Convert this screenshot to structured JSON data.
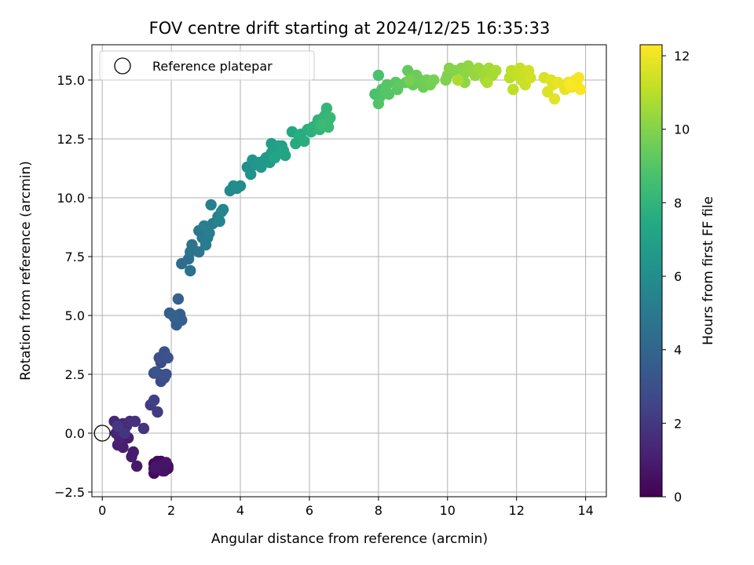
{
  "chart_data": {
    "type": "scatter",
    "title": "FOV centre drift starting at 2024/12/25 16:35:33",
    "xlabel": "Angular distance from reference (arcmin)",
    "ylabel": "Rotation from reference (arcmin)",
    "xlim": [
      -0.3,
      14.6
    ],
    "ylim": [
      -2.7,
      16.5
    ],
    "xticks": [
      0,
      2,
      4,
      6,
      8,
      10,
      12,
      14
    ],
    "yticks": [
      -2.5,
      0.0,
      2.5,
      5.0,
      7.5,
      10.0,
      12.5,
      15.0
    ],
    "xtick_labels": [
      "0",
      "2",
      "4",
      "6",
      "8",
      "10",
      "12",
      "14"
    ],
    "ytick_labels": [
      "−2.5",
      "0.0",
      "2.5",
      "5.0",
      "7.5",
      "10.0",
      "12.5",
      "15.0"
    ],
    "grid": true,
    "colormap": "viridis",
    "colorbar": {
      "label": "Hours from first FF file",
      "range": [
        0,
        12.3
      ],
      "ticks": [
        0,
        2,
        4,
        6,
        8,
        10,
        12
      ],
      "tick_labels": [
        "0",
        "2",
        "4",
        "6",
        "8",
        "10",
        "12"
      ]
    },
    "legend": {
      "position": "top-left",
      "entries": [
        {
          "label": "Reference platepar",
          "marker": "open-circle",
          "x": 0,
          "y": 0
        }
      ]
    },
    "points": [
      [
        1.5,
        -1.3,
        0.05
      ],
      [
        1.6,
        -1.5,
        0.1
      ],
      [
        1.7,
        -1.2,
        0.15
      ],
      [
        1.8,
        -1.6,
        0.2
      ],
      [
        1.9,
        -1.4,
        0.25
      ],
      [
        1.5,
        -1.7,
        0.3
      ],
      [
        1.6,
        -1.2,
        0.35
      ],
      [
        1.7,
        -1.5,
        0.4
      ],
      [
        1.8,
        -1.3,
        0.45
      ],
      [
        1.9,
        -1.5,
        0.5
      ],
      [
        1.5,
        -1.5,
        0.55
      ],
      [
        1.65,
        -1.35,
        0.6
      ],
      [
        1.75,
        -1.6,
        0.65
      ],
      [
        1.85,
        -1.25,
        0.7
      ],
      [
        1.55,
        -1.45,
        0.75
      ],
      [
        1.0,
        -1.4,
        0.85
      ],
      [
        0.9,
        -0.8,
        0.9
      ],
      [
        0.85,
        -1.0,
        0.95
      ],
      [
        0.75,
        -0.2,
        1.0
      ],
      [
        0.6,
        -0.6,
        1.05
      ],
      [
        0.45,
        -0.5,
        1.1
      ],
      [
        0.5,
        -0.2,
        1.15
      ],
      [
        0.4,
        0.0,
        1.2
      ],
      [
        0.55,
        0.2,
        1.25
      ],
      [
        0.6,
        0.4,
        1.3
      ],
      [
        0.35,
        0.5,
        1.35
      ],
      [
        0.5,
        0.1,
        1.4
      ],
      [
        0.7,
        0.3,
        1.5
      ],
      [
        0.8,
        0.5,
        1.6
      ],
      [
        0.95,
        0.5,
        1.7
      ],
      [
        1.2,
        0.2,
        1.8
      ],
      [
        0.65,
        0.0,
        1.9
      ],
      [
        0.45,
        0.3,
        2.0
      ],
      [
        1.4,
        1.2,
        2.1
      ],
      [
        1.6,
        0.9,
        2.2
      ],
      [
        1.5,
        1.4,
        2.3
      ],
      [
        1.5,
        2.55,
        2.5
      ],
      [
        1.65,
        2.5,
        2.6
      ],
      [
        1.7,
        2.2,
        2.7
      ],
      [
        1.7,
        3.0,
        2.8
      ],
      [
        1.8,
        2.35,
        2.9
      ],
      [
        1.65,
        3.2,
        3.0
      ],
      [
        1.8,
        3.45,
        3.05
      ],
      [
        1.85,
        2.5,
        3.1
      ],
      [
        1.9,
        3.2,
        3.2
      ],
      [
        1.55,
        2.6,
        3.3
      ],
      [
        1.95,
        5.1,
        3.5
      ],
      [
        2.1,
        4.9,
        3.6
      ],
      [
        2.15,
        4.6,
        3.65
      ],
      [
        2.25,
        5.05,
        3.7
      ],
      [
        2.3,
        4.8,
        3.75
      ],
      [
        2.2,
        5.7,
        3.85
      ],
      [
        2.05,
        5.0,
        3.9
      ],
      [
        2.3,
        7.2,
        4.4
      ],
      [
        2.5,
        7.4,
        4.5
      ],
      [
        2.55,
        6.9,
        4.6
      ],
      [
        2.55,
        7.7,
        4.65
      ],
      [
        2.6,
        8.0,
        4.7
      ],
      [
        2.8,
        7.7,
        4.8
      ],
      [
        2.8,
        8.6,
        4.9
      ],
      [
        2.9,
        8.3,
        5.0
      ],
      [
        3.0,
        8.0,
        5.05
      ],
      [
        3.05,
        8.3,
        5.1
      ],
      [
        3.1,
        8.5,
        5.15
      ],
      [
        3.2,
        8.9,
        5.2
      ],
      [
        2.95,
        8.8,
        5.25
      ],
      [
        3.15,
        9.7,
        5.3
      ],
      [
        3.35,
        9.2,
        5.4
      ],
      [
        3.4,
        9.0,
        5.5
      ],
      [
        3.45,
        9.4,
        5.55
      ],
      [
        3.5,
        9.5,
        5.6
      ],
      [
        3.7,
        10.3,
        5.8
      ],
      [
        3.8,
        10.5,
        5.85
      ],
      [
        3.9,
        10.4,
        5.9
      ],
      [
        4.0,
        10.5,
        5.95
      ],
      [
        4.2,
        11.3,
        6.1
      ],
      [
        4.3,
        11.0,
        6.2
      ],
      [
        4.35,
        11.6,
        6.3
      ],
      [
        4.45,
        11.4,
        6.4
      ],
      [
        4.55,
        11.5,
        6.5
      ],
      [
        4.6,
        11.3,
        6.55
      ],
      [
        4.7,
        11.6,
        6.6
      ],
      [
        4.75,
        11.7,
        6.65
      ],
      [
        4.85,
        11.5,
        6.7
      ],
      [
        4.9,
        11.9,
        6.75
      ],
      [
        4.95,
        12.0,
        6.8
      ],
      [
        4.9,
        12.3,
        6.85
      ],
      [
        5.0,
        12.0,
        6.9
      ],
      [
        5.1,
        12.2,
        6.95
      ],
      [
        5.15,
        11.9,
        7.0
      ],
      [
        5.2,
        12.2,
        7.05
      ],
      [
        5.25,
        12.0,
        7.1
      ],
      [
        5.3,
        11.8,
        7.15
      ],
      [
        5.0,
        11.7,
        7.2
      ],
      [
        5.5,
        12.8,
        7.4
      ],
      [
        5.6,
        12.3,
        7.5
      ],
      [
        5.7,
        12.6,
        7.55
      ],
      [
        5.75,
        12.7,
        7.6
      ],
      [
        5.85,
        12.4,
        7.65
      ],
      [
        5.95,
        12.9,
        7.7
      ],
      [
        6.05,
        12.8,
        7.75
      ],
      [
        6.1,
        13.0,
        7.8
      ],
      [
        6.2,
        13.1,
        7.85
      ],
      [
        6.25,
        13.3,
        7.9
      ],
      [
        6.3,
        12.9,
        7.95
      ],
      [
        6.4,
        13.4,
        8.0
      ],
      [
        6.45,
        13.5,
        8.05
      ],
      [
        6.5,
        13.8,
        8.1
      ],
      [
        6.55,
        13.3,
        8.15
      ],
      [
        6.6,
        13.4,
        8.2
      ],
      [
        6.55,
        13.0,
        8.25
      ],
      [
        6.35,
        13.1,
        8.3
      ],
      [
        7.9,
        14.4,
        8.7
      ],
      [
        8.0,
        15.2,
        8.75
      ],
      [
        8.05,
        14.3,
        8.8
      ],
      [
        8.1,
        14.6,
        8.85
      ],
      [
        8.0,
        14.0,
        8.9
      ],
      [
        8.2,
        14.5,
        8.95
      ],
      [
        8.25,
        14.8,
        9.0
      ],
      [
        8.3,
        14.4,
        9.05
      ],
      [
        8.5,
        14.9,
        9.1
      ],
      [
        8.55,
        14.6,
        9.15
      ],
      [
        8.6,
        14.8,
        9.2
      ],
      [
        8.8,
        14.9,
        9.3
      ],
      [
        8.85,
        15.4,
        9.35
      ],
      [
        8.95,
        15.1,
        9.4
      ],
      [
        9.0,
        14.8,
        9.45
      ],
      [
        9.1,
        15.2,
        9.5
      ],
      [
        9.2,
        15.0,
        9.55
      ],
      [
        9.3,
        14.7,
        9.6
      ],
      [
        9.4,
        15.0,
        9.65
      ],
      [
        9.5,
        14.8,
        9.7
      ],
      [
        9.6,
        15.0,
        9.75
      ],
      [
        8.9,
        15.0,
        9.8
      ],
      [
        9.95,
        15.0,
        9.9
      ],
      [
        10.0,
        15.2,
        9.95
      ],
      [
        10.05,
        15.5,
        10.0
      ],
      [
        10.2,
        15.4,
        10.05
      ],
      [
        10.4,
        15.5,
        10.1
      ],
      [
        10.5,
        15.3,
        10.15
      ],
      [
        10.6,
        15.6,
        10.2
      ],
      [
        10.5,
        14.9,
        10.25
      ],
      [
        10.7,
        15.4,
        10.3
      ],
      [
        10.8,
        15.2,
        10.35
      ],
      [
        10.9,
        15.5,
        10.4
      ],
      [
        11.0,
        15.4,
        10.45
      ],
      [
        11.05,
        15.3,
        10.5
      ],
      [
        11.1,
        15.0,
        10.55
      ],
      [
        11.2,
        15.5,
        10.6
      ],
      [
        11.3,
        15.2,
        10.65
      ],
      [
        11.4,
        15.4,
        10.7
      ],
      [
        10.3,
        15.0,
        10.75
      ],
      [
        11.15,
        14.9,
        10.8
      ],
      [
        11.8,
        15.1,
        11.0
      ],
      [
        11.85,
        15.4,
        11.05
      ],
      [
        11.9,
        14.6,
        11.1
      ],
      [
        12.0,
        15.2,
        11.15
      ],
      [
        12.1,
        15.5,
        11.2
      ],
      [
        12.15,
        15.0,
        11.25
      ],
      [
        12.2,
        15.3,
        11.3
      ],
      [
        12.25,
        14.8,
        11.35
      ],
      [
        12.35,
        15.4,
        11.4
      ],
      [
        12.4,
        15.1,
        11.45
      ],
      [
        12.8,
        15.1,
        11.6
      ],
      [
        12.9,
        14.5,
        11.65
      ],
      [
        13.0,
        15.0,
        11.7
      ],
      [
        13.05,
        14.8,
        11.75
      ],
      [
        13.1,
        14.2,
        11.8
      ],
      [
        13.2,
        14.9,
        11.85
      ],
      [
        13.4,
        14.6,
        11.9
      ],
      [
        13.5,
        14.9,
        11.95
      ],
      [
        13.6,
        14.7,
        12.0
      ],
      [
        13.7,
        15.0,
        12.05
      ],
      [
        13.75,
        14.8,
        12.1
      ],
      [
        13.8,
        15.1,
        12.15
      ],
      [
        13.85,
        14.6,
        12.2
      ],
      [
        13.55,
        14.8,
        12.25
      ]
    ]
  }
}
